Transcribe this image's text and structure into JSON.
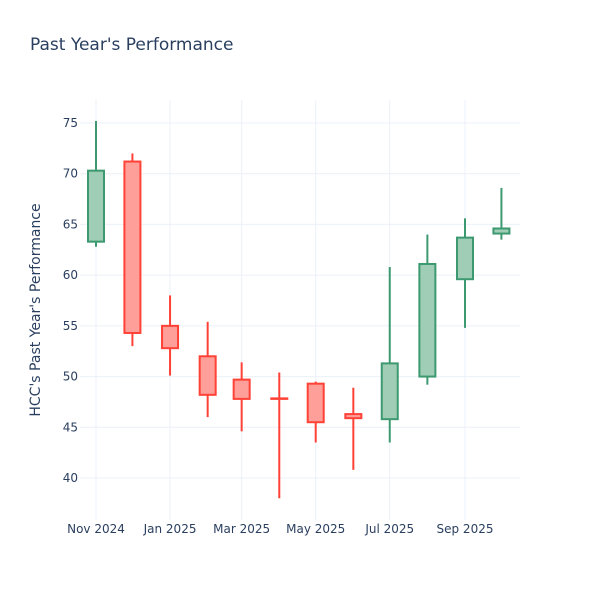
{
  "chart_data": {
    "type": "candlestick",
    "title": "Past Year's Performance",
    "xlabel": "",
    "ylabel": "HCC's Past Year's Performance",
    "ylim": [
      36,
      77
    ],
    "yticks": [
      40,
      45,
      50,
      55,
      60,
      65,
      70,
      75
    ],
    "xticks": [
      {
        "date": "2024-11-01",
        "label": "Nov 2024"
      },
      {
        "date": "2025-01-01",
        "label": "Jan 2025"
      },
      {
        "date": "2025-03-01",
        "label": "Mar 2025"
      },
      {
        "date": "2025-05-01",
        "label": "May 2025"
      },
      {
        "date": "2025-07-01",
        "label": "Jul 2025"
      },
      {
        "date": "2025-09-01",
        "label": "Sep 2025"
      }
    ],
    "grid": true,
    "increasing_color": "#3d9970",
    "decreasing_color": "#ff4136",
    "candles": [
      {
        "date": "2024-11-01",
        "open": 63.3,
        "high": 75.2,
        "low": 62.8,
        "close": 70.3
      },
      {
        "date": "2024-12-01",
        "open": 71.2,
        "high": 72.0,
        "low": 53.0,
        "close": 54.3
      },
      {
        "date": "2025-01-01",
        "open": 55.0,
        "high": 58.0,
        "low": 50.1,
        "close": 52.8
      },
      {
        "date": "2025-02-01",
        "open": 52.0,
        "high": 55.4,
        "low": 46.0,
        "close": 48.2
      },
      {
        "date": "2025-03-01",
        "open": 49.7,
        "high": 51.4,
        "low": 44.6,
        "close": 47.8
      },
      {
        "date": "2025-04-01",
        "open": 47.85,
        "high": 50.4,
        "low": 38.0,
        "close": 47.8
      },
      {
        "date": "2025-05-01",
        "open": 49.3,
        "high": 49.5,
        "low": 43.5,
        "close": 45.5
      },
      {
        "date": "2025-06-01",
        "open": 46.3,
        "high": 48.9,
        "low": 40.8,
        "close": 45.9
      },
      {
        "date": "2025-07-01",
        "open": 45.8,
        "high": 60.8,
        "low": 43.5,
        "close": 51.3
      },
      {
        "date": "2025-08-01",
        "open": 50.0,
        "high": 64.0,
        "low": 49.2,
        "close": 61.1
      },
      {
        "date": "2025-09-01",
        "open": 59.6,
        "high": 65.6,
        "low": 54.8,
        "close": 63.7
      },
      {
        "date": "2025-10-01",
        "open": 64.1,
        "high": 68.6,
        "low": 63.5,
        "close": 64.6
      }
    ]
  }
}
